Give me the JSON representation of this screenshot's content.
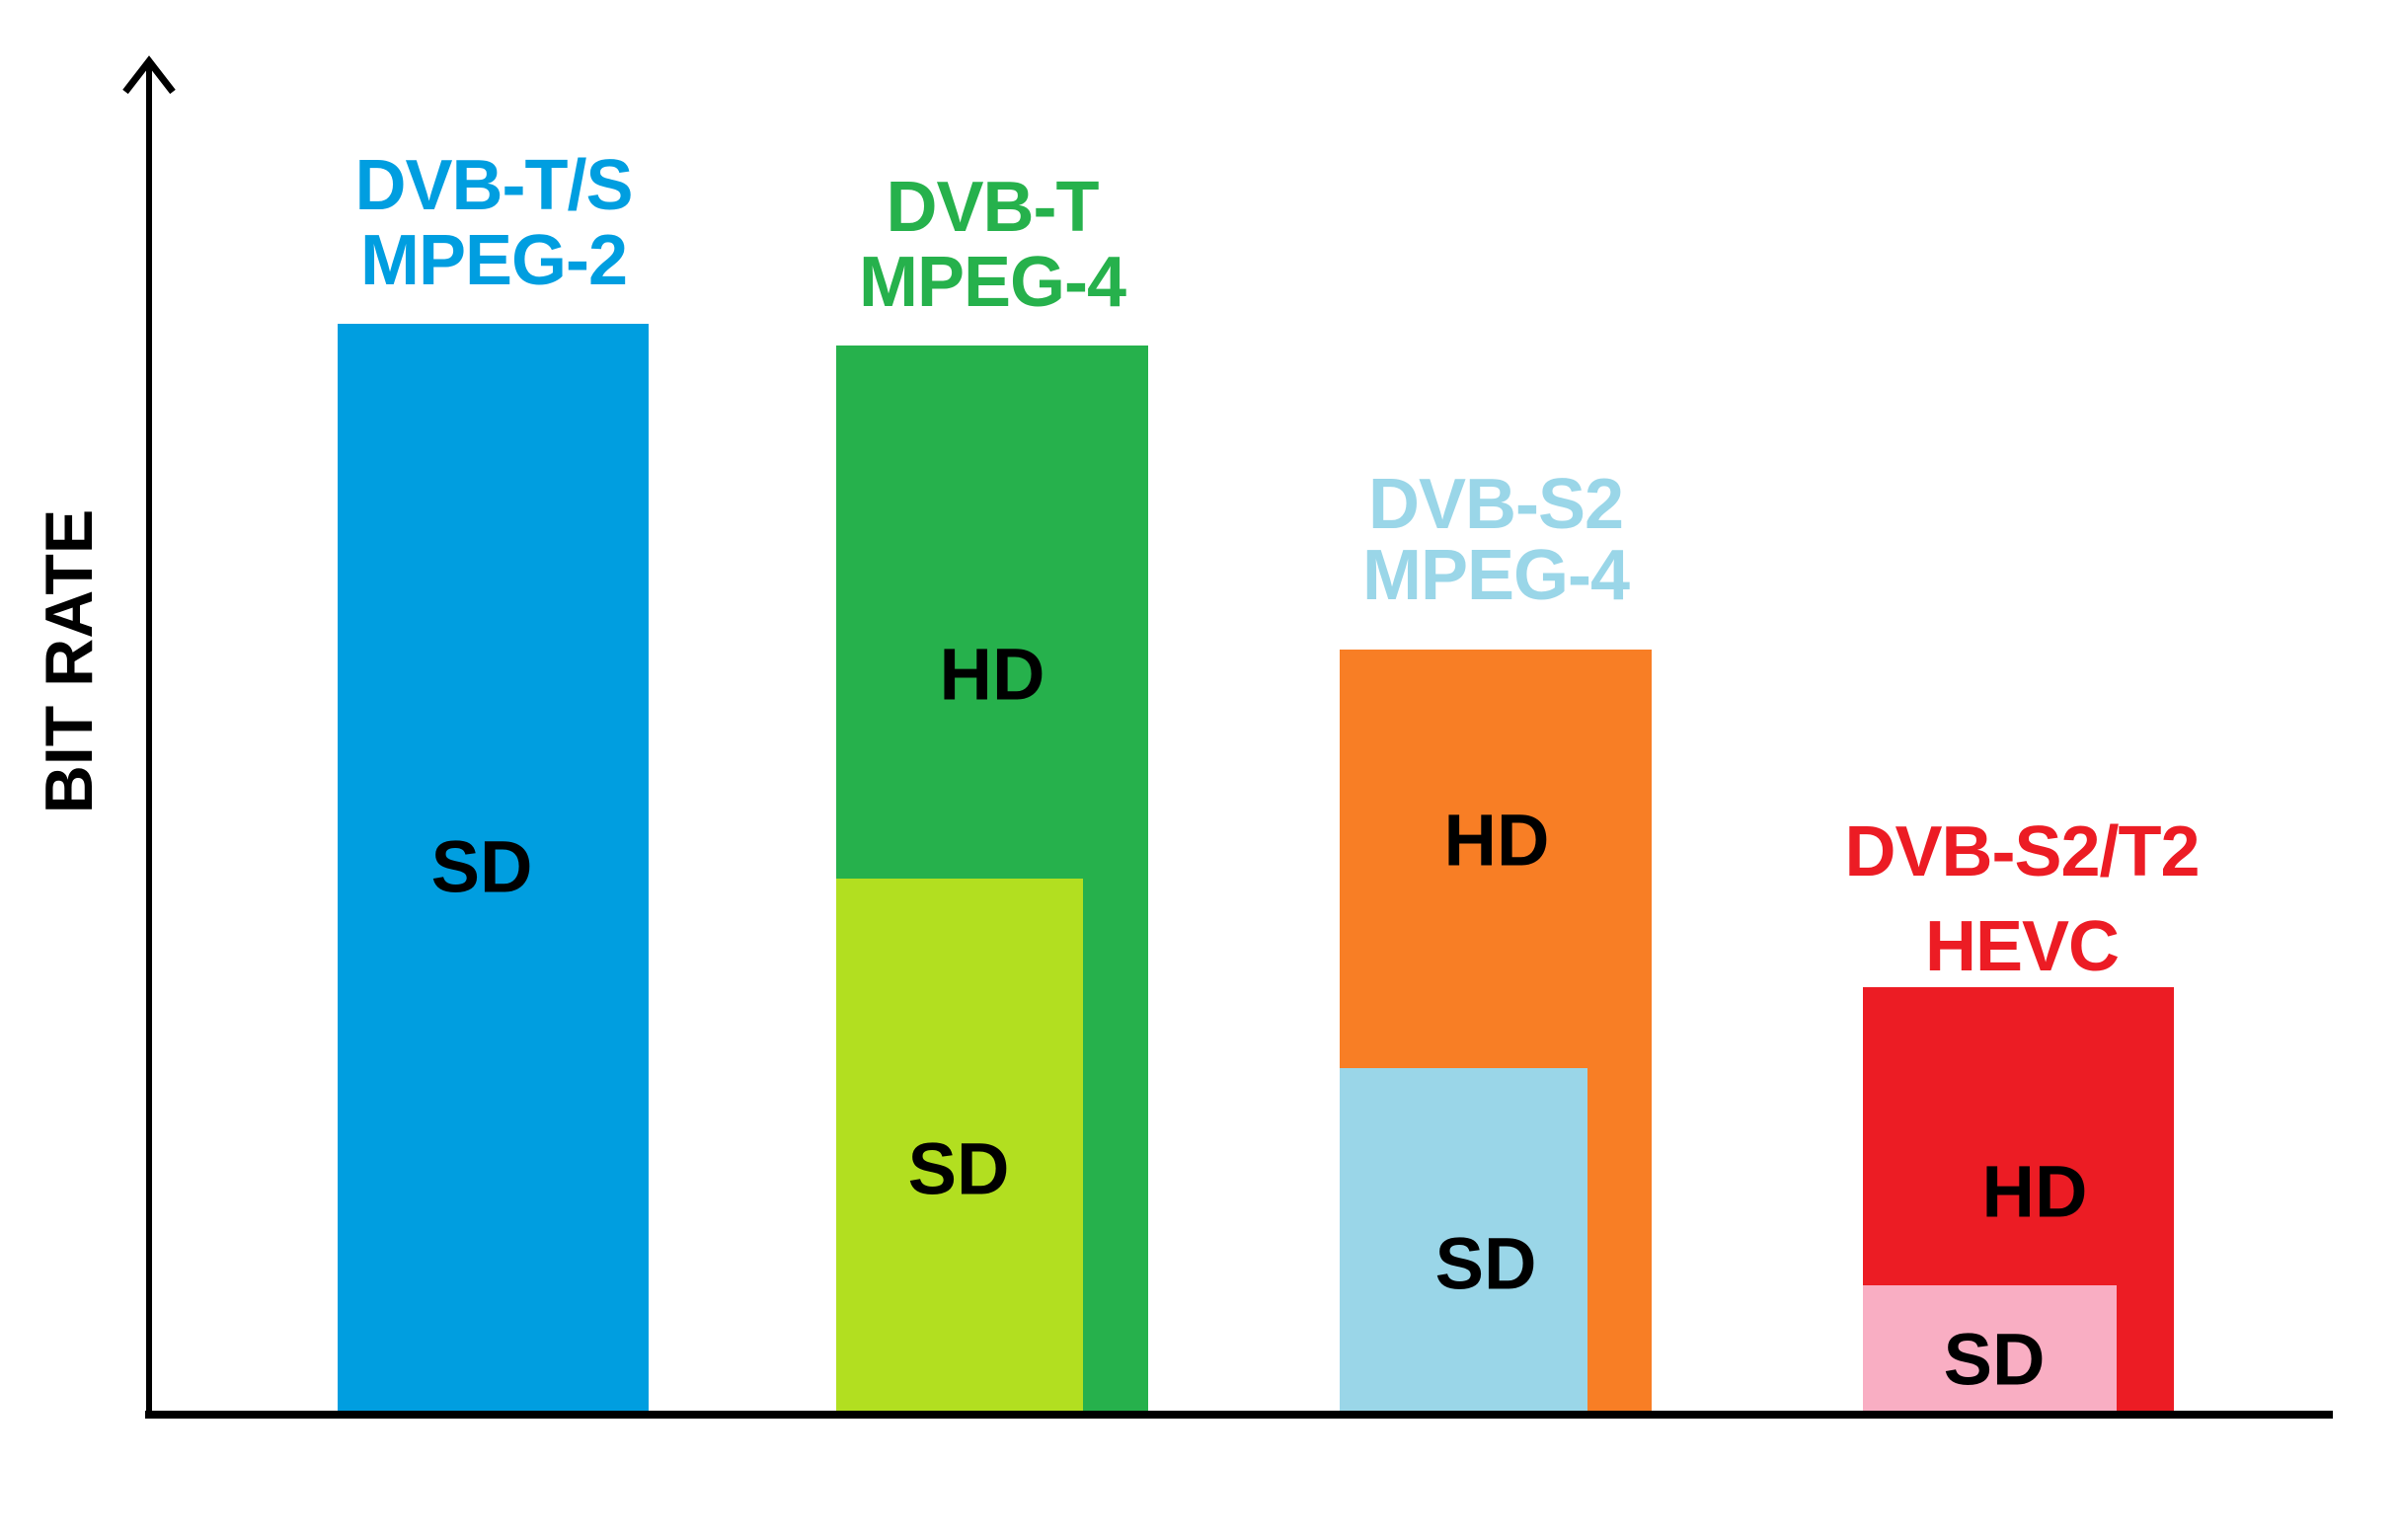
{
  "chart_data": {
    "type": "bar",
    "title": "",
    "xlabel": "",
    "ylabel": "BIT RATE",
    "value_axis_range": [
      0,
      100
    ],
    "units": "relative bit rate, percent of tallest bar (axis unlabeled, no ticks)",
    "grid": false,
    "legend": "none",
    "axis_color": "#000000",
    "groups": [
      {
        "standard": "DVB-T/S",
        "codec": "MPEG-2",
        "label_lines": [
          "DVB-T/S",
          "MPEG-2"
        ],
        "label_color": "#009EE0",
        "bars": [
          {
            "label": "SD",
            "relative_value": 100,
            "color": "#009EE0",
            "text_color": "#000000"
          }
        ]
      },
      {
        "standard": "DVB-T",
        "codec": "MPEG-4",
        "label_lines": [
          "DVB-T",
          "MPEG-4"
        ],
        "label_color": "#26B14C",
        "bars": [
          {
            "label": "HD",
            "relative_value": 98,
            "color": "#26B14C",
            "text_color": "#000000"
          },
          {
            "label": "SD",
            "relative_value": 49,
            "color": "#B2DF20",
            "text_color": "#000000"
          }
        ]
      },
      {
        "standard": "DVB-S2",
        "codec": "MPEG-4",
        "label_lines": [
          "DVB-S2",
          "MPEG-4"
        ],
        "label_color": "#9AD6E8",
        "bars": [
          {
            "label": "HD",
            "relative_value": 70,
            "color": "#F87E25",
            "text_color": "#000000"
          },
          {
            "label": "SD",
            "relative_value": 31.5,
            "color": "#9AD6E8",
            "text_color": "#000000"
          }
        ]
      },
      {
        "standard": "DVB-S2/T2",
        "codec": "HEVC",
        "label_lines": [
          "DVB-S2/T2",
          "HEVC"
        ],
        "label_color": "#EC1C24",
        "bars": [
          {
            "label": "HD",
            "relative_value": 39,
            "color": "#EC1C24",
            "text_color": "#000000"
          },
          {
            "label": "SD",
            "relative_value": 11.5,
            "color": "#F9AEC3",
            "text_color": "#000000"
          }
        ]
      }
    ]
  }
}
